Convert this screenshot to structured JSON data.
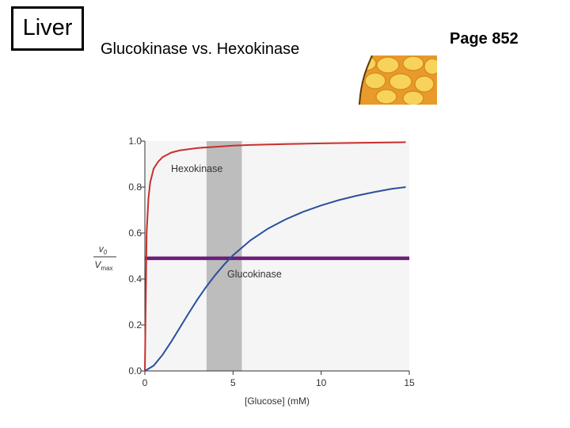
{
  "slide": {
    "label": "Liver",
    "title": "Glucokinase vs. Hexokinase",
    "page_ref": "Page 852"
  },
  "colors": {
    "hexokinase": "#c8302c",
    "glucokinase": "#2a4f9e",
    "half_max_line": "#6b1e7a",
    "shaded_band": "#bdbdbd",
    "plot_background": "#f5f5f5",
    "liver_cells": "#f2c23c"
  },
  "icons": {
    "liver_illustration": "liver-cells-icon"
  },
  "chart_data": {
    "type": "line",
    "xlabel": "[Glucose] (mM)",
    "ylabel": "v0 / Vmax",
    "ylabel_main": "v",
    "ylabel_main_sub": "0",
    "ylabel_denom": "V",
    "ylabel_denom_sub": "max",
    "xlim": [
      0,
      15
    ],
    "ylim": [
      0,
      1.0
    ],
    "xticks": [
      0,
      5,
      10,
      15
    ],
    "xtick_labels": [
      "0",
      "5",
      "10",
      "15"
    ],
    "yticks": [
      0.0,
      0.2,
      0.4,
      0.6,
      0.8,
      1.0
    ],
    "ytick_labels": [
      "0.0",
      "0.2",
      "0.4",
      "0.6",
      "0.8",
      "1.0"
    ],
    "shaded_band": {
      "x_range": [
        3.5,
        5.5
      ]
    },
    "half_max_line": {
      "y": 0.49,
      "x_range": [
        0,
        15
      ]
    },
    "series": [
      {
        "name": "Hexokinase",
        "x": [
          0,
          0.1,
          0.2,
          0.3,
          0.5,
          0.75,
          1,
          1.5,
          2,
          3,
          4,
          5,
          6,
          8,
          10,
          12,
          14.8
        ],
        "y": [
          0,
          0.6,
          0.75,
          0.82,
          0.88,
          0.91,
          0.93,
          0.95,
          0.96,
          0.97,
          0.975,
          0.98,
          0.983,
          0.987,
          0.99,
          0.992,
          0.995
        ]
      },
      {
        "name": "Glucokinase",
        "x": [
          0,
          0.5,
          1,
          1.5,
          2,
          2.5,
          3,
          3.5,
          4,
          4.5,
          5,
          6,
          7,
          8,
          9,
          10,
          11,
          12,
          13,
          14,
          14.8
        ],
        "y": [
          0,
          0.023,
          0.07,
          0.128,
          0.19,
          0.253,
          0.313,
          0.368,
          0.418,
          0.463,
          0.503,
          0.569,
          0.62,
          0.66,
          0.693,
          0.72,
          0.743,
          0.762,
          0.778,
          0.792,
          0.8
        ]
      }
    ]
  }
}
